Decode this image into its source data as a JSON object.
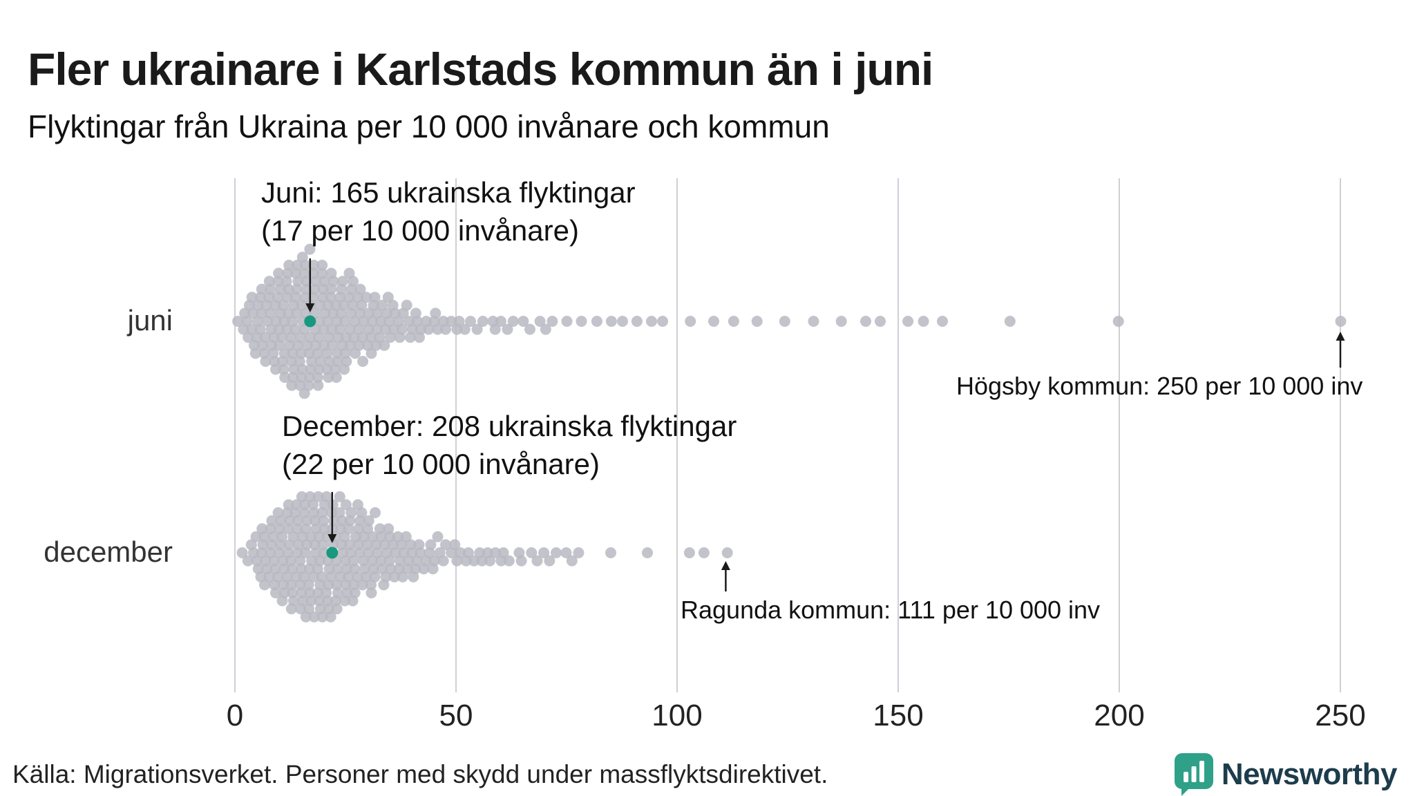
{
  "colors": {
    "dot": "#b8b8c2",
    "highlight": "#18987f",
    "grid": "#cfcfd6",
    "text": "#1a1a1a",
    "brand_teal": "#2ea188"
  },
  "chart_data": {
    "type": "scatter",
    "variant": "beeswarm, one dot per kommun, two rows",
    "title": "Fler ukrainare i Karlstads kommun än i juni",
    "subtitle": "Flyktingar från Ukraina per 10 000 invånare och kommun",
    "xlabel": "",
    "xlim": [
      0,
      250
    ],
    "xticks": [
      0,
      50,
      100,
      150,
      200,
      250
    ],
    "grid": "vertical gridlines at xticks",
    "legend": "none",
    "rows": [
      {
        "label": "juni",
        "highlight": {
          "value": 17,
          "label": "Karlstad"
        },
        "values": [
          1,
          2,
          2,
          3,
          3,
          3,
          4,
          4,
          4,
          4,
          5,
          5,
          5,
          5,
          6,
          6,
          6,
          6,
          6,
          7,
          7,
          7,
          7,
          7,
          8,
          8,
          8,
          8,
          8,
          8,
          9,
          9,
          9,
          9,
          9,
          9,
          10,
          10,
          10,
          10,
          10,
          10,
          10,
          11,
          11,
          11,
          11,
          11,
          11,
          11,
          12,
          12,
          12,
          12,
          12,
          12,
          12,
          12,
          13,
          13,
          13,
          13,
          13,
          13,
          13,
          13,
          14,
          14,
          14,
          14,
          14,
          14,
          14,
          14,
          15,
          15,
          15,
          15,
          15,
          15,
          15,
          15,
          15,
          16,
          16,
          16,
          16,
          16,
          16,
          16,
          16,
          16,
          17,
          17,
          17,
          17,
          17,
          17,
          17,
          17,
          17,
          18,
          18,
          18,
          18,
          18,
          18,
          18,
          18,
          19,
          19,
          19,
          19,
          19,
          19,
          19,
          19,
          20,
          20,
          20,
          20,
          20,
          20,
          20,
          20,
          21,
          21,
          21,
          21,
          21,
          21,
          21,
          22,
          22,
          22,
          22,
          22,
          22,
          22,
          23,
          23,
          23,
          23,
          23,
          23,
          23,
          24,
          24,
          24,
          24,
          24,
          24,
          25,
          25,
          25,
          25,
          25,
          25,
          26,
          26,
          26,
          26,
          26,
          26,
          27,
          27,
          27,
          27,
          27,
          28,
          28,
          28,
          28,
          28,
          29,
          29,
          29,
          29,
          30,
          30,
          30,
          30,
          31,
          31,
          31,
          31,
          32,
          32,
          32,
          32,
          33,
          33,
          33,
          34,
          34,
          34,
          35,
          35,
          35,
          36,
          36,
          36,
          37,
          37,
          38,
          38,
          39,
          39,
          40,
          40,
          41,
          41,
          42,
          42,
          43,
          44,
          45,
          45,
          46,
          47,
          48,
          49,
          50,
          51,
          52,
          53,
          55,
          56,
          58,
          59,
          60,
          62,
          63,
          65,
          67,
          69,
          70,
          72,
          75,
          78,
          82,
          85,
          88,
          91,
          94,
          97,
          103,
          108,
          113,
          118,
          124,
          131,
          137,
          143,
          146,
          152,
          156,
          160,
          175,
          200,
          250
        ]
      },
      {
        "label": "december",
        "highlight": {
          "value": 22,
          "label": "Karlstad"
        },
        "values": [
          2,
          3,
          4,
          4,
          5,
          5,
          5,
          6,
          6,
          6,
          6,
          7,
          7,
          7,
          7,
          8,
          8,
          8,
          8,
          8,
          9,
          9,
          9,
          9,
          9,
          10,
          10,
          10,
          10,
          10,
          10,
          11,
          11,
          11,
          11,
          11,
          11,
          12,
          12,
          12,
          12,
          12,
          12,
          12,
          13,
          13,
          13,
          13,
          13,
          13,
          13,
          14,
          14,
          14,
          14,
          14,
          14,
          14,
          15,
          15,
          15,
          15,
          15,
          15,
          15,
          15,
          16,
          16,
          16,
          16,
          16,
          16,
          16,
          16,
          17,
          17,
          17,
          17,
          17,
          17,
          17,
          17,
          18,
          18,
          18,
          18,
          18,
          18,
          18,
          18,
          19,
          19,
          19,
          19,
          19,
          19,
          19,
          19,
          20,
          20,
          20,
          20,
          20,
          20,
          20,
          20,
          21,
          21,
          21,
          21,
          21,
          21,
          21,
          21,
          22,
          22,
          22,
          22,
          22,
          22,
          22,
          22,
          23,
          23,
          23,
          23,
          23,
          23,
          23,
          24,
          24,
          24,
          24,
          24,
          24,
          24,
          25,
          25,
          25,
          25,
          25,
          25,
          25,
          26,
          26,
          26,
          26,
          26,
          26,
          27,
          27,
          27,
          27,
          27,
          27,
          28,
          28,
          28,
          28,
          28,
          28,
          29,
          29,
          29,
          29,
          29,
          30,
          30,
          30,
          30,
          30,
          31,
          31,
          31,
          31,
          31,
          32,
          32,
          32,
          32,
          33,
          33,
          33,
          33,
          34,
          34,
          34,
          34,
          35,
          35,
          35,
          35,
          36,
          36,
          36,
          37,
          37,
          37,
          38,
          38,
          38,
          39,
          39,
          39,
          40,
          40,
          40,
          41,
          41,
          42,
          42,
          43,
          43,
          44,
          44,
          45,
          45,
          46,
          46,
          47,
          48,
          49,
          50,
          50,
          51,
          52,
          53,
          54,
          55,
          56,
          57,
          58,
          59,
          60,
          61,
          62,
          64,
          65,
          67,
          68,
          70,
          71,
          73,
          75,
          76,
          78,
          85,
          93,
          103,
          106,
          111
        ]
      }
    ],
    "annotations": [
      {
        "target": "juni highlight dot",
        "line1": "Juni: 165 ukrainska flyktingar",
        "line2": "(17 per 10 000 invånare)"
      },
      {
        "target": "december highlight dot",
        "line1": "December: 208 ukrainska flyktingar",
        "line2": "(22 per 10 000 invånare)"
      },
      {
        "target": "juni max dot",
        "text": "Högsby kommun: 250 per 10 000 inv",
        "value": 250
      },
      {
        "target": "december max dot",
        "text": "Ragunda kommun: 111 per 10 000 inv",
        "value": 111
      }
    ]
  },
  "footer": {
    "source": "Källa: Migrationsverket. Personer med skydd under massflyktsdirektivet.",
    "brand": "Newsworthy"
  }
}
